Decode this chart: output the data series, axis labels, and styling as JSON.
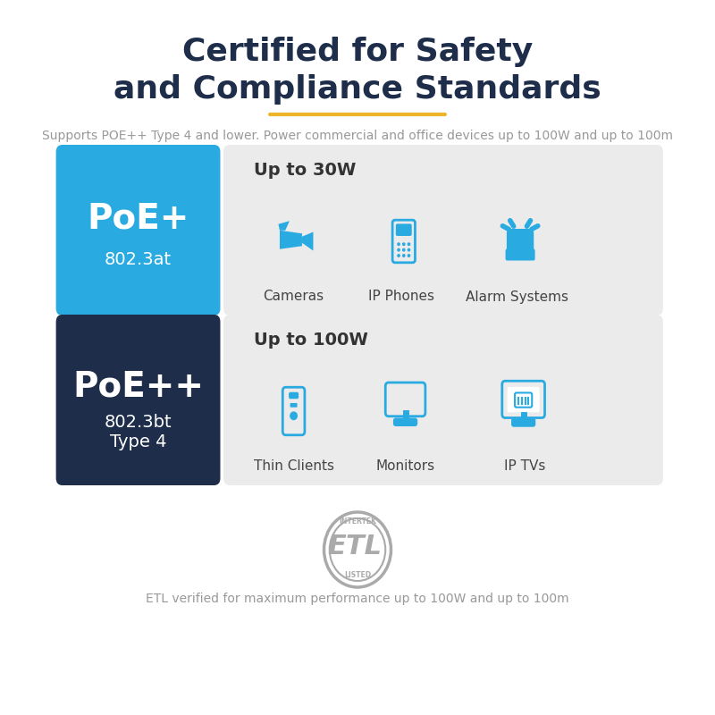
{
  "title_line1": "Certified for Safety",
  "title_line2": "and Compliance Standards",
  "title_color": "#1e2d4a",
  "title_fontsize": 26,
  "underline_color": "#f0b429",
  "subtitle": "Supports POE++ Type 4 and lower. Power commercial and office devices up to 100W and up to 100m",
  "subtitle_color": "#999999",
  "subtitle_fontsize": 10,
  "poe_plus_label": "PoE+",
  "poe_plus_sub": "802.3at",
  "poe_plus_bg": "#29abe2",
  "poe_plus_text_color": "#ffffff",
  "poe_plus_watt": "Up to 30W",
  "poe_plus_devices": [
    "Cameras",
    "IP Phones",
    "Alarm Systems"
  ],
  "poe_pp_label": "PoE++",
  "poe_pp_sub1": "802.3bt",
  "poe_pp_sub2": "Type 4",
  "poe_pp_bg": "#1e2d4a",
  "poe_pp_text_color": "#ffffff",
  "poe_pp_watt": "Up to 100W",
  "poe_pp_devices": [
    "Thin Clients",
    "Monitors",
    "IP TVs"
  ],
  "device_box_bg": "#ebebeb",
  "device_text_color": "#444444",
  "watt_text_color": "#333333",
  "icon_color": "#29abe2",
  "etl_text": "ETL verified for maximum performance up to 100W and up to 100m",
  "etl_text_color": "#999999",
  "background_color": "#ffffff"
}
